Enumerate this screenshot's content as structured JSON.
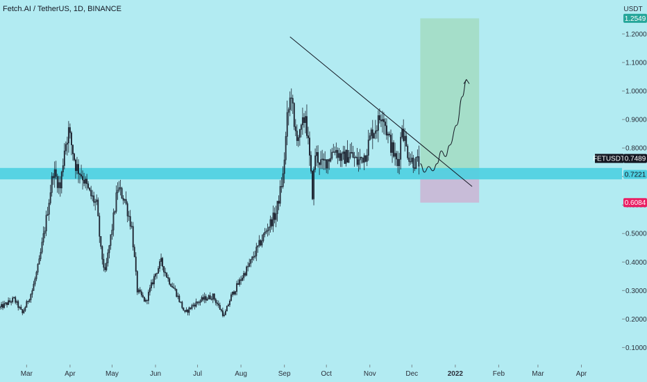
{
  "chart_title": "Fetch.AI / TetherUS, 1D, BINANCE",
  "colors": {
    "background": "#b2ebf2",
    "candle": "#1a1f2c",
    "zone": "#4dd0e1",
    "target_box": "#a5dec9",
    "stop_box": "#c8bcd8",
    "price_badge": "#131722",
    "target_badge": "#26a69a",
    "stop_badge": "#e91e63",
    "support_badge": "#4dd0e1"
  },
  "chart_data": {
    "type": "candlestick",
    "symbol": "FETUSDT",
    "exchange": "BINANCE",
    "interval": "1D",
    "y_unit": "USDT",
    "ylim": [
      0.04,
      1.29
    ],
    "x_range": [
      "2021-02-10",
      "2022-04-30"
    ],
    "y_ticks": [
      0.1,
      0.2,
      0.3,
      0.4,
      0.5,
      0.6,
      0.7,
      0.8,
      0.9,
      1.0,
      1.1,
      1.2
    ],
    "y_tick_labels": [
      "0.1000",
      "0.2000",
      "0.3000",
      "0.4000",
      "0.5000",
      "0.6000",
      "0.7000",
      "0.8000",
      "0.9000",
      "1.0000",
      "1.1000",
      "1.2000"
    ],
    "x_ticks": [
      {
        "date": "2021-03-01",
        "label": "Mar"
      },
      {
        "date": "2021-04-01",
        "label": "Apr"
      },
      {
        "date": "2021-05-01",
        "label": "May"
      },
      {
        "date": "2021-06-01",
        "label": "Jun"
      },
      {
        "date": "2021-07-01",
        "label": "Jul"
      },
      {
        "date": "2021-08-01",
        "label": "Aug"
      },
      {
        "date": "2021-09-01",
        "label": "Sep"
      },
      {
        "date": "2021-10-01",
        "label": "Oct"
      },
      {
        "date": "2021-11-01",
        "label": "Nov"
      },
      {
        "date": "2021-12-01",
        "label": "Dec"
      },
      {
        "date": "2022-01-01",
        "label": "2022",
        "bold": true
      },
      {
        "date": "2022-02-01",
        "label": "Feb"
      },
      {
        "date": "2022-03-01",
        "label": "Mar"
      },
      {
        "date": "2022-04-01",
        "label": "Apr"
      }
    ],
    "close_path": [
      [
        "2021-02-10",
        0.24
      ],
      [
        "2021-02-20",
        0.27
      ],
      [
        "2021-02-26",
        0.22
      ],
      [
        "2021-03-05",
        0.3
      ],
      [
        "2021-03-10",
        0.4
      ],
      [
        "2021-03-15",
        0.55
      ],
      [
        "2021-03-20",
        0.72
      ],
      [
        "2021-03-25",
        0.66
      ],
      [
        "2021-03-28",
        0.8
      ],
      [
        "2021-03-31",
        0.86
      ],
      [
        "2021-04-05",
        0.74
      ],
      [
        "2021-04-10",
        0.7
      ],
      [
        "2021-04-15",
        0.64
      ],
      [
        "2021-04-20",
        0.6
      ],
      [
        "2021-04-23",
        0.44
      ],
      [
        "2021-04-26",
        0.36
      ],
      [
        "2021-05-01",
        0.52
      ],
      [
        "2021-05-05",
        0.66
      ],
      [
        "2021-05-10",
        0.62
      ],
      [
        "2021-05-15",
        0.52
      ],
      [
        "2021-05-19",
        0.3
      ],
      [
        "2021-05-25",
        0.26
      ],
      [
        "2021-06-01",
        0.36
      ],
      [
        "2021-06-05",
        0.4
      ],
      [
        "2021-06-10",
        0.34
      ],
      [
        "2021-06-15",
        0.3
      ],
      [
        "2021-06-22",
        0.22
      ],
      [
        "2021-06-28",
        0.25
      ],
      [
        "2021-07-05",
        0.27
      ],
      [
        "2021-07-12",
        0.28
      ],
      [
        "2021-07-20",
        0.21
      ],
      [
        "2021-07-25",
        0.28
      ],
      [
        "2021-08-01",
        0.34
      ],
      [
        "2021-08-08",
        0.4
      ],
      [
        "2021-08-14",
        0.46
      ],
      [
        "2021-08-20",
        0.52
      ],
      [
        "2021-08-26",
        0.57
      ],
      [
        "2021-08-31",
        0.7
      ],
      [
        "2021-09-03",
        0.9
      ],
      [
        "2021-09-06",
        1.0
      ],
      [
        "2021-09-08",
        0.86
      ],
      [
        "2021-09-12",
        0.84
      ],
      [
        "2021-09-16",
        0.92
      ],
      [
        "2021-09-19",
        0.76
      ],
      [
        "2021-09-21",
        0.64
      ],
      [
        "2021-09-23",
        0.78
      ],
      [
        "2021-09-28",
        0.74
      ],
      [
        "2021-10-02",
        0.76
      ],
      [
        "2021-10-07",
        0.8
      ],
      [
        "2021-10-12",
        0.76
      ],
      [
        "2021-10-18",
        0.78
      ],
      [
        "2021-10-23",
        0.75
      ],
      [
        "2021-10-29",
        0.78
      ],
      [
        "2021-11-02",
        0.85
      ],
      [
        "2021-11-06",
        0.88
      ],
      [
        "2021-11-10",
        0.93
      ],
      [
        "2021-11-14",
        0.84
      ],
      [
        "2021-11-18",
        0.78
      ],
      [
        "2021-11-21",
        0.74
      ],
      [
        "2021-11-24",
        0.88
      ],
      [
        "2021-11-27",
        0.8
      ],
      [
        "2021-11-30",
        0.76
      ],
      [
        "2021-12-03",
        0.75
      ],
      [
        "2021-12-06",
        0.749
      ]
    ],
    "last_price": {
      "label": "FETUSDT",
      "value": 0.7489,
      "value_label": "0.7489"
    },
    "support_zone": {
      "from": 0.69,
      "to": 0.73,
      "value_label": "0.7221"
    },
    "target": {
      "value": 1.2549,
      "value_label": "1.2549"
    },
    "stop": {
      "value": 0.6084,
      "value_label": "0.6084"
    },
    "position_box": {
      "start": "2021-12-07",
      "end": "2022-01-18",
      "entry": 0.7221,
      "target": 1.2549,
      "stop": 0.6084
    },
    "trendline": [
      [
        "2021-09-05",
        1.19
      ],
      [
        "2022-01-13",
        0.665
      ]
    ],
    "projection_path": [
      [
        "2021-12-07",
        0.745
      ],
      [
        "2021-12-10",
        0.715
      ],
      [
        "2021-12-13",
        0.735
      ],
      [
        "2021-12-16",
        0.72
      ],
      [
        "2021-12-19",
        0.745
      ],
      [
        "2021-12-22",
        0.79
      ],
      [
        "2021-12-25",
        0.77
      ],
      [
        "2021-12-28",
        0.81
      ],
      [
        "2022-01-02",
        0.88
      ],
      [
        "2022-01-06",
        0.98
      ],
      [
        "2022-01-09",
        1.04
      ]
    ]
  }
}
